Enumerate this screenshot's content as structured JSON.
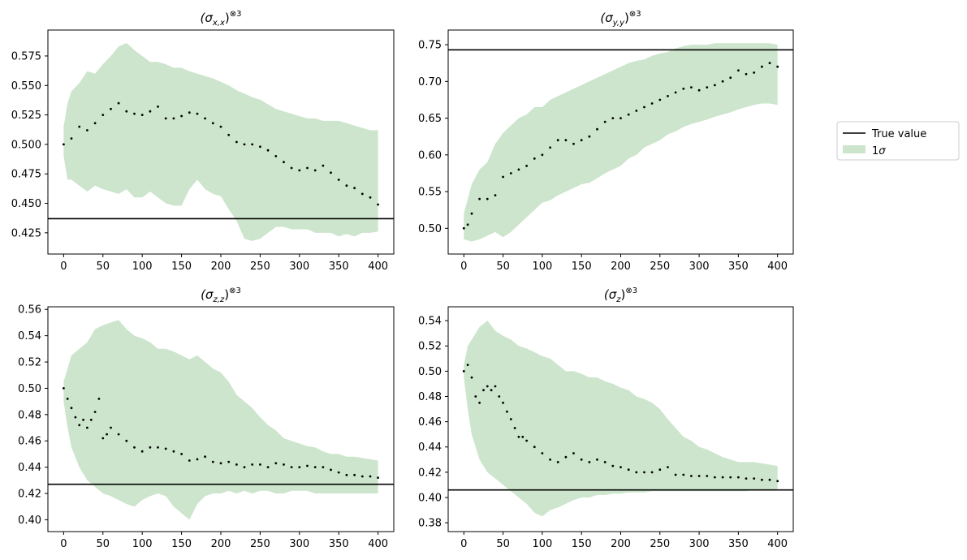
{
  "chart_data": [
    {
      "type": "scatter",
      "title_base": "(σ",
      "title_sub": "x,x",
      "title_close": ")",
      "title_sup": "⊗3",
      "xlim": [
        -20,
        420
      ],
      "ylim": [
        0.407,
        0.597
      ],
      "xticks": [
        0,
        50,
        100,
        150,
        200,
        250,
        300,
        350,
        400
      ],
      "yticks": [
        0.425,
        0.45,
        0.475,
        0.5,
        0.525,
        0.55,
        0.575
      ],
      "ytick_labels": [
        "0.425",
        "0.450",
        "0.475",
        "0.500",
        "0.525",
        "0.550",
        "0.575"
      ],
      "true_value": 0.437,
      "band": {
        "x": [
          0,
          5,
          10,
          20,
          30,
          40,
          50,
          60,
          70,
          80,
          90,
          100,
          110,
          120,
          130,
          140,
          150,
          160,
          170,
          180,
          190,
          200,
          210,
          220,
          230,
          240,
          250,
          260,
          270,
          280,
          290,
          300,
          310,
          320,
          330,
          340,
          350,
          360,
          370,
          380,
          390,
          400
        ],
        "upper": [
          0.515,
          0.535,
          0.545,
          0.552,
          0.562,
          0.56,
          0.568,
          0.575,
          0.583,
          0.586,
          0.58,
          0.575,
          0.57,
          0.57,
          0.568,
          0.565,
          0.565,
          0.562,
          0.56,
          0.558,
          0.556,
          0.553,
          0.55,
          0.546,
          0.543,
          0.54,
          0.538,
          0.534,
          0.53,
          0.528,
          0.526,
          0.524,
          0.522,
          0.522,
          0.52,
          0.52,
          0.52,
          0.518,
          0.516,
          0.514,
          0.512,
          0.512
        ],
        "lower": [
          0.49,
          0.47,
          0.47,
          0.465,
          0.46,
          0.465,
          0.462,
          0.46,
          0.458,
          0.462,
          0.455,
          0.455,
          0.46,
          0.455,
          0.45,
          0.448,
          0.448,
          0.462,
          0.47,
          0.462,
          0.458,
          0.456,
          0.445,
          0.435,
          0.42,
          0.418,
          0.42,
          0.425,
          0.43,
          0.43,
          0.428,
          0.428,
          0.428,
          0.425,
          0.425,
          0.425,
          0.422,
          0.424,
          0.422,
          0.425,
          0.425,
          0.426
        ]
      },
      "series": {
        "x": [
          0,
          10,
          20,
          30,
          40,
          50,
          60,
          70,
          80,
          90,
          100,
          110,
          120,
          130,
          140,
          150,
          160,
          170,
          180,
          190,
          200,
          210,
          220,
          230,
          240,
          250,
          260,
          270,
          280,
          290,
          300,
          310,
          320,
          330,
          340,
          350,
          360,
          370,
          380,
          390,
          400
        ],
        "y": [
          0.5,
          0.505,
          0.515,
          0.512,
          0.518,
          0.525,
          0.53,
          0.535,
          0.528,
          0.526,
          0.525,
          0.528,
          0.532,
          0.522,
          0.522,
          0.524,
          0.527,
          0.526,
          0.522,
          0.518,
          0.515,
          0.508,
          0.502,
          0.5,
          0.5,
          0.498,
          0.495,
          0.49,
          0.485,
          0.48,
          0.478,
          0.48,
          0.478,
          0.482,
          0.476,
          0.47,
          0.465,
          0.463,
          0.458,
          0.455,
          0.449
        ]
      }
    },
    {
      "type": "scatter",
      "title_base": "(σ",
      "title_sub": "y,y",
      "title_close": ")",
      "title_sup": "⊗3",
      "xlim": [
        -20,
        420
      ],
      "ylim": [
        0.465,
        0.77
      ],
      "xticks": [
        0,
        50,
        100,
        150,
        200,
        250,
        300,
        350,
        400
      ],
      "yticks": [
        0.5,
        0.55,
        0.6,
        0.65,
        0.7,
        0.75
      ],
      "ytick_labels": [
        "0.50",
        "0.55",
        "0.60",
        "0.65",
        "0.70",
        "0.75"
      ],
      "true_value": 0.743,
      "band": {
        "x": [
          0,
          10,
          20,
          30,
          40,
          50,
          60,
          70,
          80,
          90,
          100,
          110,
          120,
          130,
          140,
          150,
          160,
          170,
          180,
          190,
          200,
          210,
          220,
          230,
          240,
          250,
          260,
          270,
          280,
          290,
          300,
          310,
          320,
          330,
          340,
          350,
          360,
          370,
          380,
          390,
          400
        ],
        "upper": [
          0.52,
          0.56,
          0.58,
          0.59,
          0.615,
          0.63,
          0.64,
          0.65,
          0.655,
          0.665,
          0.665,
          0.675,
          0.68,
          0.685,
          0.69,
          0.695,
          0.7,
          0.705,
          0.71,
          0.715,
          0.72,
          0.725,
          0.728,
          0.73,
          0.735,
          0.738,
          0.74,
          0.745,
          0.748,
          0.75,
          0.75,
          0.75,
          0.752,
          0.752,
          0.752,
          0.752,
          0.752,
          0.752,
          0.752,
          0.752,
          0.75
        ],
        "lower": [
          0.485,
          0.482,
          0.485,
          0.49,
          0.495,
          0.488,
          0.495,
          0.505,
          0.515,
          0.525,
          0.535,
          0.538,
          0.545,
          0.55,
          0.555,
          0.56,
          0.562,
          0.568,
          0.575,
          0.58,
          0.585,
          0.595,
          0.6,
          0.61,
          0.615,
          0.62,
          0.628,
          0.632,
          0.638,
          0.642,
          0.645,
          0.648,
          0.652,
          0.655,
          0.658,
          0.662,
          0.665,
          0.668,
          0.67,
          0.67,
          0.668
        ]
      },
      "series": {
        "x": [
          0,
          5,
          10,
          20,
          30,
          40,
          50,
          60,
          70,
          80,
          90,
          100,
          110,
          120,
          130,
          140,
          150,
          160,
          170,
          180,
          190,
          200,
          210,
          220,
          230,
          240,
          250,
          260,
          270,
          280,
          290,
          300,
          310,
          320,
          330,
          340,
          350,
          360,
          370,
          380,
          390,
          400
        ],
        "y": [
          0.5,
          0.505,
          0.52,
          0.54,
          0.54,
          0.545,
          0.57,
          0.575,
          0.58,
          0.585,
          0.595,
          0.6,
          0.61,
          0.62,
          0.62,
          0.615,
          0.62,
          0.625,
          0.635,
          0.645,
          0.65,
          0.65,
          0.655,
          0.66,
          0.665,
          0.67,
          0.675,
          0.68,
          0.685,
          0.69,
          0.692,
          0.688,
          0.692,
          0.695,
          0.7,
          0.705,
          0.715,
          0.71,
          0.712,
          0.72,
          0.725,
          0.72
        ]
      }
    },
    {
      "type": "scatter",
      "title_base": "(σ",
      "title_sub": "z,z",
      "title_close": ")",
      "title_sup": "⊗3",
      "xlim": [
        -20,
        420
      ],
      "ylim": [
        0.391,
        0.562
      ],
      "xticks": [
        0,
        50,
        100,
        150,
        200,
        250,
        300,
        350,
        400
      ],
      "yticks": [
        0.4,
        0.42,
        0.44,
        0.46,
        0.48,
        0.5,
        0.52,
        0.54,
        0.56
      ],
      "ytick_labels": [
        "0.40",
        "0.42",
        "0.44",
        "0.46",
        "0.48",
        "0.50",
        "0.52",
        "0.54",
        "0.56"
      ],
      "true_value": 0.427,
      "band": {
        "x": [
          0,
          5,
          10,
          20,
          30,
          40,
          50,
          60,
          70,
          80,
          90,
          100,
          110,
          120,
          130,
          140,
          150,
          160,
          170,
          180,
          190,
          200,
          210,
          220,
          230,
          240,
          250,
          260,
          270,
          280,
          290,
          300,
          310,
          320,
          330,
          340,
          350,
          360,
          370,
          380,
          390,
          400
        ],
        "upper": [
          0.505,
          0.515,
          0.525,
          0.53,
          0.535,
          0.545,
          0.548,
          0.55,
          0.552,
          0.545,
          0.54,
          0.538,
          0.535,
          0.53,
          0.53,
          0.528,
          0.525,
          0.522,
          0.525,
          0.52,
          0.515,
          0.512,
          0.505,
          0.495,
          0.49,
          0.485,
          0.478,
          0.472,
          0.468,
          0.462,
          0.46,
          0.458,
          0.456,
          0.455,
          0.452,
          0.45,
          0.45,
          0.448,
          0.448,
          0.447,
          0.446,
          0.445
        ],
        "lower": [
          0.49,
          0.47,
          0.455,
          0.44,
          0.43,
          0.425,
          0.42,
          0.418,
          0.415,
          0.412,
          0.41,
          0.415,
          0.418,
          0.42,
          0.418,
          0.41,
          0.405,
          0.4,
          0.412,
          0.418,
          0.42,
          0.42,
          0.422,
          0.42,
          0.422,
          0.42,
          0.422,
          0.422,
          0.42,
          0.42,
          0.422,
          0.422,
          0.422,
          0.42,
          0.42,
          0.42,
          0.42,
          0.42,
          0.42,
          0.42,
          0.42,
          0.42
        ]
      },
      "series": {
        "x": [
          0,
          5,
          10,
          15,
          20,
          25,
          30,
          35,
          40,
          45,
          50,
          55,
          60,
          70,
          80,
          90,
          100,
          110,
          120,
          130,
          140,
          150,
          160,
          170,
          180,
          190,
          200,
          210,
          220,
          230,
          240,
          250,
          260,
          270,
          280,
          290,
          300,
          310,
          320,
          330,
          340,
          350,
          360,
          370,
          380,
          390,
          400
        ],
        "y": [
          0.5,
          0.492,
          0.485,
          0.478,
          0.472,
          0.476,
          0.47,
          0.476,
          0.482,
          0.492,
          0.462,
          0.465,
          0.47,
          0.465,
          0.46,
          0.455,
          0.452,
          0.455,
          0.455,
          0.454,
          0.452,
          0.45,
          0.445,
          0.446,
          0.448,
          0.444,
          0.443,
          0.444,
          0.442,
          0.44,
          0.442,
          0.442,
          0.44,
          0.443,
          0.442,
          0.44,
          0.44,
          0.441,
          0.44,
          0.44,
          0.438,
          0.436,
          0.434,
          0.434,
          0.433,
          0.433,
          0.432
        ]
      }
    },
    {
      "type": "scatter",
      "title_base": "(σ",
      "title_sub": "z",
      "title_close": ")",
      "title_sup": "⊗3",
      "xlim": [
        -20,
        420
      ],
      "ylim": [
        0.373,
        0.551
      ],
      "xticks": [
        0,
        50,
        100,
        150,
        200,
        250,
        300,
        350,
        400
      ],
      "yticks": [
        0.38,
        0.4,
        0.42,
        0.44,
        0.46,
        0.48,
        0.5,
        0.52,
        0.54
      ],
      "ytick_labels": [
        "0.38",
        "0.40",
        "0.42",
        "0.44",
        "0.46",
        "0.48",
        "0.50",
        "0.52",
        "0.54"
      ],
      "true_value": 0.406,
      "band": {
        "x": [
          0,
          5,
          10,
          20,
          30,
          40,
          50,
          60,
          70,
          80,
          90,
          100,
          110,
          120,
          130,
          140,
          150,
          160,
          170,
          180,
          190,
          200,
          210,
          220,
          230,
          240,
          250,
          260,
          270,
          280,
          290,
          300,
          310,
          320,
          330,
          340,
          350,
          360,
          370,
          380,
          390,
          400
        ],
        "upper": [
          0.505,
          0.52,
          0.525,
          0.535,
          0.54,
          0.532,
          0.528,
          0.525,
          0.52,
          0.518,
          0.515,
          0.512,
          0.51,
          0.505,
          0.5,
          0.5,
          0.498,
          0.495,
          0.495,
          0.492,
          0.49,
          0.487,
          0.485,
          0.48,
          0.478,
          0.475,
          0.47,
          0.462,
          0.455,
          0.448,
          0.445,
          0.44,
          0.438,
          0.435,
          0.432,
          0.43,
          0.428,
          0.428,
          0.428,
          0.427,
          0.426,
          0.425
        ],
        "lower": [
          0.495,
          0.47,
          0.45,
          0.43,
          0.42,
          0.415,
          0.41,
          0.405,
          0.4,
          0.395,
          0.388,
          0.385,
          0.39,
          0.392,
          0.395,
          0.398,
          0.4,
          0.4,
          0.402,
          0.402,
          0.403,
          0.403,
          0.404,
          0.404,
          0.404,
          0.405,
          0.405,
          0.405,
          0.405,
          0.405,
          0.405,
          0.405,
          0.405,
          0.405,
          0.405,
          0.405,
          0.405,
          0.405,
          0.406,
          0.406,
          0.406,
          0.406
        ]
      },
      "series": {
        "x": [
          0,
          5,
          10,
          15,
          20,
          25,
          30,
          35,
          40,
          45,
          50,
          55,
          60,
          65,
          70,
          75,
          80,
          90,
          100,
          110,
          120,
          130,
          140,
          150,
          160,
          170,
          180,
          190,
          200,
          210,
          220,
          230,
          240,
          250,
          260,
          270,
          280,
          290,
          300,
          310,
          320,
          330,
          340,
          350,
          360,
          370,
          380,
          390,
          400
        ],
        "y": [
          0.5,
          0.505,
          0.495,
          0.48,
          0.475,
          0.485,
          0.488,
          0.485,
          0.488,
          0.48,
          0.475,
          0.468,
          0.462,
          0.455,
          0.448,
          0.448,
          0.445,
          0.44,
          0.435,
          0.43,
          0.428,
          0.432,
          0.435,
          0.43,
          0.428,
          0.43,
          0.428,
          0.425,
          0.424,
          0.422,
          0.42,
          0.42,
          0.42,
          0.422,
          0.424,
          0.418,
          0.418,
          0.417,
          0.417,
          0.417,
          0.416,
          0.416,
          0.416,
          0.416,
          0.415,
          0.415,
          0.414,
          0.414,
          0.413
        ]
      }
    }
  ],
  "legend": {
    "true_value_label": "True value",
    "band_label_num": "1",
    "band_label_sym": "σ",
    "placement": "right",
    "true_value_color": "#000000",
    "band_color": "#cce5cc",
    "point_color": "#000000"
  }
}
